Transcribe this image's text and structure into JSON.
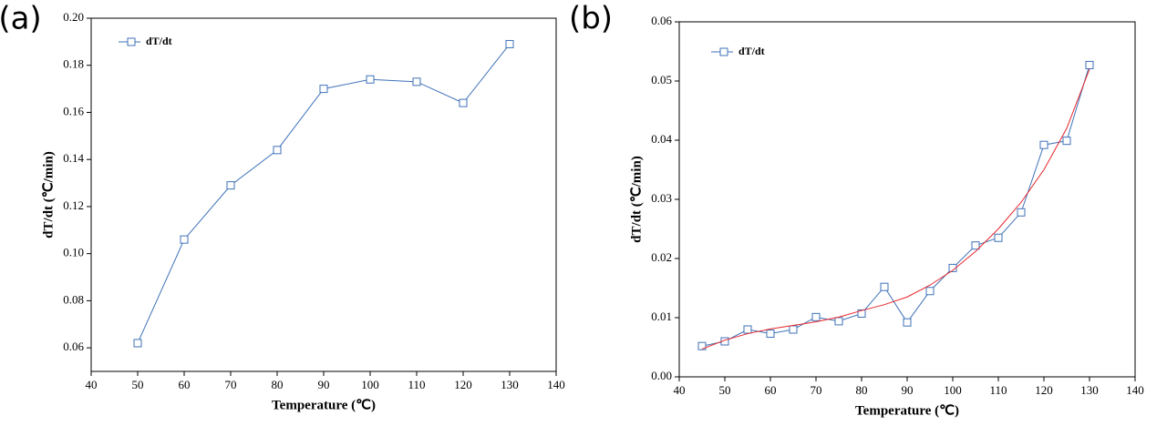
{
  "chart_data": [
    {
      "type": "line",
      "panel": "(a)",
      "xlabel": "Temperature (℃)",
      "ylabel": "dT/dt (℃/min)",
      "x": [
        50,
        60,
        70,
        80,
        90,
        100,
        110,
        120,
        130
      ],
      "series": [
        {
          "name": "dT/dt",
          "color": "#3f72b8",
          "values": [
            0.062,
            0.106,
            0.129,
            0.144,
            0.17,
            0.174,
            0.173,
            0.164,
            0.189
          ]
        }
      ],
      "xlim": [
        40,
        140
      ],
      "xticks": [
        40,
        50,
        60,
        70,
        80,
        90,
        100,
        110,
        120,
        130,
        140
      ],
      "ylim": [
        0.05,
        0.2
      ],
      "yticks": [
        0.06,
        0.08,
        {
          "value": 0.1,
          "label": "0.10"
        },
        0.12,
        0.14,
        0.16,
        0.18,
        {
          "value": 0.2,
          "label": "0.20"
        }
      ],
      "legend": "upper left"
    },
    {
      "type": "line",
      "panel": "(b)",
      "xlabel": "Temperature (℃)",
      "ylabel": "dT/dt (℃/min)",
      "x": [
        45,
        50,
        55,
        60,
        65,
        70,
        75,
        80,
        85,
        90,
        95,
        100,
        105,
        110,
        115,
        120,
        125,
        130
      ],
      "series": [
        {
          "name": "dT/dt",
          "color": "#3f72b8",
          "values": [
            0.0052,
            0.006,
            0.008,
            0.0073,
            0.008,
            0.0101,
            0.0094,
            0.0107,
            0.0152,
            0.0092,
            0.0145,
            0.0184,
            0.0222,
            0.0235,
            0.0278,
            0.0392,
            0.0399,
            0.0527
          ]
        },
        {
          "color": "#e8262b",
          "values": [
            0.0047,
            0.0062,
            0.0073,
            0.0081,
            0.0087,
            0.0093,
            0.0101,
            0.0112,
            0.0122,
            0.0135,
            0.0155,
            0.018,
            0.0212,
            0.025,
            0.0295,
            0.035,
            0.042,
            0.052
          ]
        }
      ],
      "xlim": [
        40,
        140
      ],
      "xticks": [
        40,
        50,
        60,
        70,
        80,
        90,
        100,
        110,
        120,
        130,
        140
      ],
      "ylim": [
        0,
        0.06
      ],
      "yticks": [
        {
          "value": 0,
          "label": "0.00"
        },
        0.01,
        0.02,
        0.03,
        0.04,
        0.05,
        0.06
      ],
      "legend": "upper left"
    }
  ]
}
